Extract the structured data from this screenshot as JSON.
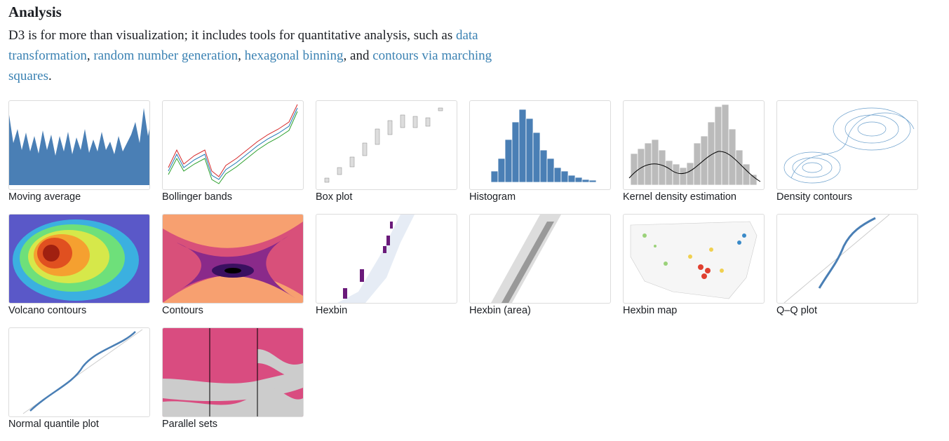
{
  "title": "Analysis",
  "intro": [
    {
      "text": "D3 is for more than visualization; it includes tools for quantitative analysis, such as "
    },
    {
      "link": "data transformation"
    },
    {
      "text": ", "
    },
    {
      "link": "random number generation"
    },
    {
      "text": ", "
    },
    {
      "link": "hexagonal binning"
    },
    {
      "text": ", and "
    },
    {
      "link": "contours via marching squares"
    },
    {
      "text": "."
    }
  ],
  "items": [
    "Moving average",
    "Bollinger bands",
    "Box plot",
    "Histogram",
    "Kernel density estimation",
    "Density contours",
    "Volcano contours",
    "Contours",
    "Hexbin",
    "Hexbin (area)",
    "Hexbin map",
    "Q–Q plot",
    "Normal quantile plot",
    "Parallel sets"
  ]
}
